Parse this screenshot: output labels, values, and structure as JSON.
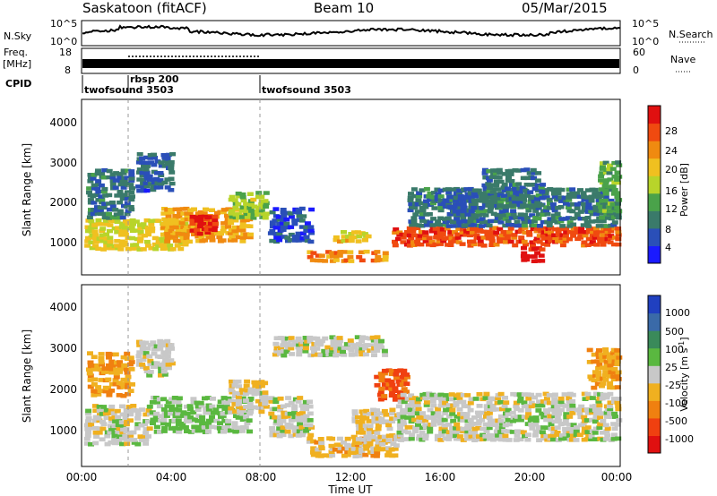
{
  "header": {
    "station": "Saskatoon (fitACF)",
    "beam": "Beam 10",
    "date": "05/Mar/2015"
  },
  "panels": {
    "nsky": {
      "label": "N.Sky",
      "ticks_left": [
        "10^5",
        "10^0"
      ],
      "ticks_right": [
        "10^5",
        "10^0"
      ],
      "right_label": "N.Search"
    },
    "freq": {
      "label_top": "Freq.",
      "label_bottom": "[MHz]",
      "ticks_left": [
        "18",
        "8"
      ],
      "ticks_right": [
        "60",
        "0"
      ],
      "right_label": "Nave"
    },
    "cpid": {
      "label": "CPID",
      "segments": [
        {
          "name": "twofsound 3503",
          "start_h": 0,
          "end_h": 2
        },
        {
          "name": "rbsp 200",
          "start_h": 2,
          "end_h": 8
        },
        {
          "name": "twofsound 3503",
          "start_h": 8,
          "end_h": 24
        }
      ]
    }
  },
  "axes": {
    "ylabel": "Slant Range [km]",
    "xlabel": "Time UT",
    "y_ticks": [
      "1000",
      "2000",
      "3000",
      "4000"
    ],
    "x_ticks": [
      "00:00",
      "04:00",
      "08:00",
      "12:00",
      "16:00",
      "20:00",
      "00:00"
    ]
  },
  "colorbars": {
    "power": {
      "label": "Power [dB]",
      "ticks": [
        "4",
        "8",
        "12",
        "16",
        "20",
        "24",
        "28"
      ],
      "colors": [
        "#1a1aff",
        "#2a4fb8",
        "#3a7a6a",
        "#4aa24a",
        "#b8d42a",
        "#f0c020",
        "#f08a10",
        "#f04a10",
        "#e01010"
      ]
    },
    "velocity": {
      "label": "Velocity [m s",
      "label_sup": "-1",
      "label_end": "]",
      "ticks": [
        "1000",
        "500",
        "100",
        "25",
        "-25",
        "-100",
        "-500",
        "-1000"
      ],
      "colors": [
        "#2040c0",
        "#3a6aa8",
        "#3a8a5a",
        "#5ab840",
        "#c8c8c8",
        "#f0b020",
        "#f08010",
        "#f04010",
        "#e01010"
      ]
    }
  },
  "chart_data": {
    "type": "heatmap",
    "x_range_hours": [
      0,
      24
    ],
    "y_range_km": [
      0,
      4500
    ],
    "power_range_db": [
      0,
      30
    ],
    "velocity_range_ms": [
      -1000,
      1000
    ],
    "power_blobs": [
      {
        "t0": 0.1,
        "t1": 4.6,
        "r0": 700,
        "r1": 1500,
        "db": 17
      },
      {
        "t0": 0.2,
        "t1": 2.2,
        "r0": 1500,
        "r1": 2800,
        "db": 8
      },
      {
        "t0": 2.4,
        "t1": 4.0,
        "r0": 2200,
        "r1": 3200,
        "db": 6
      },
      {
        "t0": 3.5,
        "t1": 7.5,
        "r0": 900,
        "r1": 1800,
        "db": 20
      },
      {
        "t0": 4.8,
        "t1": 5.9,
        "r0": 1100,
        "r1": 1600,
        "db": 27
      },
      {
        "t0": 6.5,
        "t1": 8.2,
        "r0": 1500,
        "r1": 2200,
        "db": 14
      },
      {
        "t0": 8.3,
        "t1": 10.2,
        "r0": 900,
        "r1": 1800,
        "db": 5
      },
      {
        "t0": 10.0,
        "t1": 13.5,
        "r0": 400,
        "r1": 700,
        "db": 22
      },
      {
        "t0": 11.2,
        "t1": 12.8,
        "r0": 900,
        "r1": 1200,
        "db": 18
      },
      {
        "t0": 13.8,
        "t1": 23.9,
        "r0": 800,
        "r1": 1300,
        "db": 25
      },
      {
        "t0": 14.5,
        "t1": 23.9,
        "r0": 1300,
        "r1": 2300,
        "db": 8
      },
      {
        "t0": 16.2,
        "t1": 17.5,
        "r0": 1300,
        "r1": 2300,
        "db": 6
      },
      {
        "t0": 17.8,
        "t1": 20.5,
        "r0": 1800,
        "r1": 2800,
        "db": 8
      },
      {
        "t0": 19.5,
        "t1": 20.5,
        "r0": 400,
        "r1": 800,
        "db": 28
      },
      {
        "t0": 23.0,
        "t1": 23.9,
        "r0": 1500,
        "r1": 3000,
        "db": 12
      }
    ],
    "velocity_blobs": [
      {
        "t0": 0.1,
        "t1": 3.0,
        "r0": 600,
        "r1": 1600,
        "v": 0
      },
      {
        "t0": 0.2,
        "t1": 2.2,
        "r0": 1800,
        "r1": 2900,
        "v": -300
      },
      {
        "t0": 2.4,
        "t1": 4.0,
        "r0": 2300,
        "r1": 3200,
        "v": 0
      },
      {
        "t0": 3.0,
        "t1": 7.5,
        "r0": 900,
        "r1": 1800,
        "v": 150
      },
      {
        "t0": 6.5,
        "t1": 8.2,
        "r0": 1400,
        "r1": 2200,
        "v": -60
      },
      {
        "t0": 8.3,
        "t1": 10.2,
        "r0": 800,
        "r1": 1800,
        "v": 0
      },
      {
        "t0": 8.5,
        "t1": 13.5,
        "r0": 2800,
        "r1": 3300,
        "v": 0
      },
      {
        "t0": 10.0,
        "t1": 14.0,
        "r0": 300,
        "r1": 800,
        "v": -200
      },
      {
        "t0": 12.0,
        "t1": 14.2,
        "r0": 600,
        "r1": 1500,
        "v": -100
      },
      {
        "t0": 13.0,
        "t1": 14.5,
        "r0": 1700,
        "r1": 2500,
        "v": -600
      },
      {
        "t0": 14.0,
        "t1": 23.9,
        "r0": 700,
        "r1": 1900,
        "v": 0
      },
      {
        "t0": 22.5,
        "t1": 23.9,
        "r0": 2000,
        "r1": 3000,
        "v": -300
      }
    ]
  }
}
